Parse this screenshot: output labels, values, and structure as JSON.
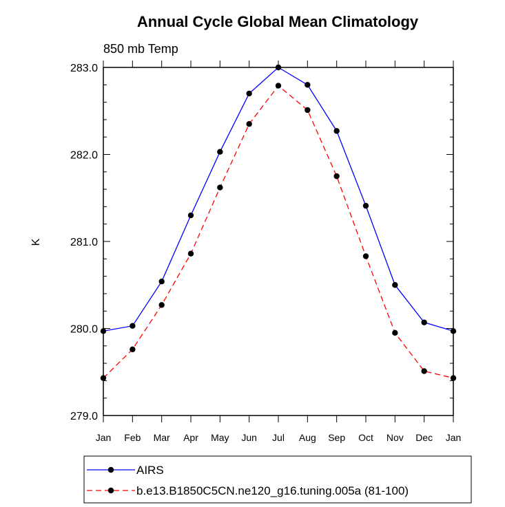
{
  "chart_data": {
    "type": "line",
    "title": "Annual Cycle Global Mean Climatology",
    "subtitle": "850 mb Temp",
    "ylabel": "K",
    "xlabel": "",
    "ylim": [
      279.0,
      283.0
    ],
    "yticks": [
      "279.0",
      "280.0",
      "281.0",
      "282.0",
      "283.0"
    ],
    "categories": [
      "Jan",
      "Feb",
      "Mar",
      "Apr",
      "May",
      "Jun",
      "Jul",
      "Aug",
      "Sep",
      "Oct",
      "Nov",
      "Dec",
      "Jan"
    ],
    "grid": false,
    "legend_position": "bottom",
    "series": [
      {
        "name": "AIRS",
        "color": "#0000ff",
        "dash": "solid",
        "values": [
          279.97,
          280.03,
          280.54,
          281.3,
          282.03,
          282.7,
          283.0,
          282.8,
          282.27,
          281.41,
          280.5,
          280.07,
          279.97
        ]
      },
      {
        "name": "b.e13.B1850C5CN.ne120_g16.tuning.005a (81-100)",
        "color": "#ff0000",
        "dash": "dashed",
        "values": [
          279.43,
          279.76,
          280.27,
          280.86,
          281.62,
          282.35,
          282.79,
          282.51,
          281.75,
          280.83,
          279.95,
          279.51,
          279.43
        ]
      }
    ]
  }
}
